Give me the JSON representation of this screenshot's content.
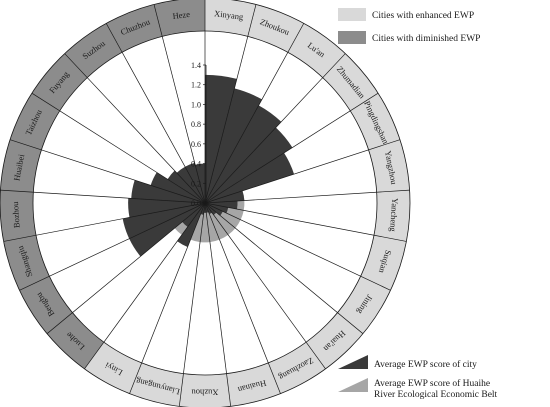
{
  "chart_data": {
    "type": "radial-bar",
    "cities": [
      "Xinyang",
      "Zhoukou",
      "Lu'an",
      "Zhumadian",
      "Pingdingshan",
      "Yangzhou",
      "Yancheng",
      "Suqian",
      "Jining",
      "Huai'an",
      "Zaozhuang",
      "Huainan",
      "Xuzhou",
      "Lianyungang",
      "Linyi",
      "Luohe",
      "Bengbu",
      "Shangqiu",
      "Bozhou",
      "Huaibei",
      "Taizhou",
      "Fuyang",
      "Suzhou",
      "Chuzhou",
      "Heze"
    ],
    "city_scores": [
      1.3,
      1.2,
      1.13,
      1.05,
      0.95,
      0.4,
      0.33,
      0.24,
      0.2,
      0.15,
      0.12,
      0.1,
      0.1,
      0.12,
      0.48,
      0.3,
      0.85,
      0.85,
      0.78,
      0.75,
      0.58,
      0.45,
      0.42,
      0.42,
      0.4
    ],
    "belt_average": 0.4,
    "enhanced_cities": [
      "Xinyang",
      "Zhoukou",
      "Lu'an",
      "Zhumadian",
      "Pingdingshan",
      "Yangzhou",
      "Yancheng",
      "Suqian",
      "Jining",
      "Huai'an",
      "Zaozhuang",
      "Huainan",
      "Xuzhou",
      "Lianyungang",
      "Linyi"
    ],
    "diminished_cities": [
      "Luohe",
      "Bengbu",
      "Shangqiu",
      "Bozhou",
      "Huaibei",
      "Taizhou",
      "Fuyang",
      "Suzhou",
      "Chuzhou",
      "Heze"
    ],
    "radial_axis": {
      "ticks": [
        "0.0",
        "0.2",
        "0.4",
        "0.6",
        "0.8",
        "1.0",
        "1.2",
        "1.4"
      ],
      "tick_values": [
        0,
        0.2,
        0.4,
        0.6,
        0.8,
        1.0,
        1.2,
        1.4
      ],
      "max": 1.4
    },
    "legend": {
      "enhanced": "Cities with enhanced EWP",
      "diminished": "Cities with diminished EWP",
      "city_score": "Average EWP score of city",
      "belt_score_line1": "Average EWP score of Huaihe",
      "belt_score_line2": "River Ecological Economic Belt"
    },
    "colors": {
      "enhanced": "#d9d9d9",
      "diminished": "#8c8c8c",
      "city_bar": "#3a3a3a",
      "belt_bar": "#a6a6a6",
      "segment_stroke": "#ffffff",
      "grid_stroke": "#1a1a1a"
    },
    "grid": true
  }
}
